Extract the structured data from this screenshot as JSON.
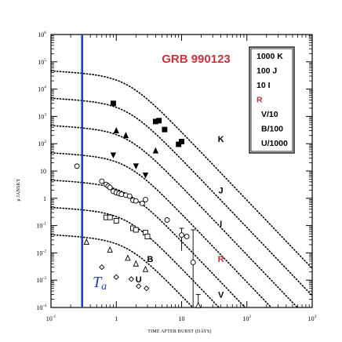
{
  "chart_data": {
    "type": "scatter",
    "title": "GRB 990123",
    "xlabel": "TIME AFTER BURST (DAYS)",
    "ylabel": "μ JANSKY",
    "xscale": "log",
    "yscale": "log",
    "xlim": [
      0.1,
      1000
    ],
    "ylim": [
      0.0001,
      1000000
    ],
    "x_tick_labels": [
      {
        "base": "10",
        "exp": "-1"
      },
      {
        "base": "1",
        "exp": ""
      },
      {
        "base": "10",
        "exp": ""
      },
      {
        "base": "10",
        "exp": "2"
      },
      {
        "base": "10",
        "exp": "3"
      }
    ],
    "y_tick_labels": [
      {
        "base": "10",
        "exp": "6"
      },
      {
        "base": "10",
        "exp": "5"
      },
      {
        "base": "10",
        "exp": "4"
      },
      {
        "base": "10",
        "exp": "3"
      },
      {
        "base": "10",
        "exp": "2"
      },
      {
        "base": "10",
        "exp": ""
      },
      {
        "base": "1",
        "exp": ""
      },
      {
        "base": "10",
        "exp": "-1"
      },
      {
        "base": "10",
        "exp": "-2"
      },
      {
        "base": "10",
        "exp": "-3"
      },
      {
        "base": "10",
        "exp": "-4"
      }
    ],
    "vertical_line": {
      "x": 0.3,
      "label": "T",
      "label_sub": "a",
      "color": "#1f3fbf"
    },
    "colors": {
      "title": "#c8323c",
      "R": "#c8323c",
      "annotation": "#1f3fbf",
      "default": "#000000"
    },
    "legend": {
      "placement": "top-right",
      "entries": [
        "1000 K",
        "100 J",
        "10 I",
        "R",
        "V/10",
        "B/100",
        "U/1000"
      ]
    },
    "series": [
      {
        "name": "K",
        "scale": "1000",
        "marker": "filled-square",
        "color": "#000000",
        "model": {
          "norm": 33000,
          "t_break": 1.5,
          "alpha1": 0.15,
          "alpha2": 2.5
        },
        "points": [
          {
            "x": 0.9,
            "y": 3000
          },
          {
            "x": 4.0,
            "y": 650
          },
          {
            "x": 4.5,
            "y": 700
          },
          {
            "x": 5.5,
            "y": 330
          },
          {
            "x": 9.0,
            "y": 95
          },
          {
            "x": 10.0,
            "y": 120
          }
        ]
      },
      {
        "name": "J",
        "scale": "100",
        "marker": "filled-triangle",
        "color": "#000000",
        "model": {
          "norm": 3300,
          "t_break": 1.5,
          "alpha1": 0.15,
          "alpha2": 2.5
        },
        "points": [
          {
            "x": 1.0,
            "y": 300
          },
          {
            "x": 1.4,
            "y": 200
          },
          {
            "x": 4.0,
            "y": 55
          }
        ]
      },
      {
        "name": "I",
        "scale": "10",
        "marker": "filled-down-triangle",
        "color": "#000000",
        "model": {
          "norm": 330,
          "t_break": 1.5,
          "alpha1": 0.15,
          "alpha2": 2.5
        },
        "points": [
          {
            "x": 0.9,
            "y": 38
          },
          {
            "x": 2.0,
            "y": 15
          },
          {
            "x": 2.8,
            "y": 7
          }
        ]
      },
      {
        "name": "R",
        "scale": "1",
        "marker": "open-circle",
        "color": "#000000",
        "model": {
          "norm": 33,
          "t_break": 1.5,
          "alpha1": 0.15,
          "alpha2": 2.5
        },
        "points": [
          {
            "x": 0.25,
            "y": 15
          },
          {
            "x": 0.6,
            "y": 4.2
          },
          {
            "x": 0.7,
            "y": 3.2
          },
          {
            "x": 0.75,
            "y": 2.8
          },
          {
            "x": 0.8,
            "y": 2.5
          },
          {
            "x": 0.9,
            "y": 1.8
          },
          {
            "x": 1.0,
            "y": 1.6
          },
          {
            "x": 1.1,
            "y": 1.5
          },
          {
            "x": 1.2,
            "y": 1.4
          },
          {
            "x": 1.4,
            "y": 1.3
          },
          {
            "x": 1.6,
            "y": 1.2
          },
          {
            "x": 1.8,
            "y": 0.85
          },
          {
            "x": 2.0,
            "y": 0.8
          },
          {
            "x": 2.5,
            "y": 0.65
          },
          {
            "x": 2.8,
            "y": 0.9
          },
          {
            "x": 6.0,
            "y": 0.16
          },
          {
            "x": 10.0,
            "y": 0.045,
            "err": [
              0.012,
              0.08
            ]
          },
          {
            "x": 12.0,
            "y": 0.04
          },
          {
            "x": 15.0,
            "y": 0.0045,
            "err": [
              0.0001,
              0.07
            ]
          }
        ]
      },
      {
        "name": "V",
        "scale": "1/10",
        "marker": "open-square",
        "color": "#000000",
        "model": {
          "norm": 3.3,
          "t_break": 1.5,
          "alpha1": 0.15,
          "alpha2": 2.5
        },
        "points": [
          {
            "x": 0.7,
            "y": 0.2
          },
          {
            "x": 0.8,
            "y": 0.2
          },
          {
            "x": 1.0,
            "y": 0.15
          },
          {
            "x": 1.8,
            "y": 0.08
          },
          {
            "x": 2.0,
            "y": 0.07
          },
          {
            "x": 2.8,
            "y": 0.055
          },
          {
            "x": 3.0,
            "y": 0.04
          }
        ]
      },
      {
        "name": "B",
        "scale": "1/100",
        "marker": "open-triangle",
        "color": "#000000",
        "model": {
          "norm": 0.33,
          "t_break": 1.5,
          "alpha1": 0.15,
          "alpha2": 2.5
        },
        "points": [
          {
            "x": 0.35,
            "y": 0.025
          },
          {
            "x": 0.8,
            "y": 0.013
          },
          {
            "x": 1.5,
            "y": 0.0065
          },
          {
            "x": 2.0,
            "y": 0.004
          },
          {
            "x": 2.8,
            "y": 0.0025
          },
          {
            "x": 18.0,
            "y": 0.00012,
            "err": [
              3e-05,
              0.0003
            ]
          }
        ]
      },
      {
        "name": "U",
        "scale": "1/1000",
        "marker": "open-diamond",
        "color": "#000000",
        "model": {
          "norm": 0.033,
          "t_break": 1.5,
          "alpha1": 0.15,
          "alpha2": 2.5
        },
        "points": [
          {
            "x": 0.6,
            "y": 0.003
          },
          {
            "x": 1.0,
            "y": 0.0013
          },
          {
            "x": 1.7,
            "y": 0.0011
          },
          {
            "x": 2.2,
            "y": 0.0006
          },
          {
            "x": 2.9,
            "y": 0.0005
          }
        ]
      }
    ],
    "curve_labels": [
      {
        "text": "K",
        "x": 40,
        "y": 150,
        "color": "#000000"
      },
      {
        "text": "J",
        "x": 40,
        "y": 2.0,
        "color": "#000000"
      },
      {
        "text": "I",
        "x": 40,
        "y": 0.12,
        "color": "#000000"
      },
      {
        "text": "R",
        "x": 40,
        "y": 0.006,
        "color": "#c8323c"
      },
      {
        "text": "V",
        "x": 40,
        "y": 0.0003,
        "color": "#000000"
      },
      {
        "text": "B",
        "x": 3.3,
        "y": 0.006,
        "color": "#000000"
      },
      {
        "text": "U",
        "x": 2.2,
        "y": 0.0011,
        "color": "#000000"
      }
    ],
    "grid": false
  }
}
